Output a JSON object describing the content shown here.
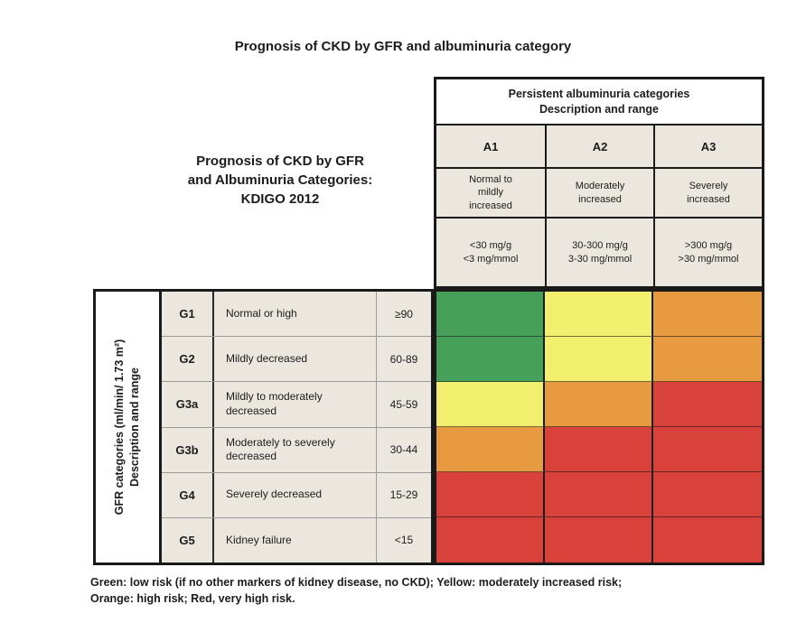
{
  "title": "Prognosis of CKD by GFR and albuminuria category",
  "left_caption": {
    "line1": "Prognosis of CKD by GFR",
    "line2": "and Albuminuria Categories:",
    "line3": "KDIGO 2012"
  },
  "albuminuria": {
    "header_line1": "Persistent albuminuria categories",
    "header_line2": "Description and range",
    "columns": [
      {
        "code": "A1",
        "description": "Normal to mildly increased",
        "range_line1": "<30 mg/g",
        "range_line2": "<3 mg/mmol"
      },
      {
        "code": "A2",
        "description": "Moderately increased",
        "range_line1": "30-300 mg/g",
        "range_line2": "3-30 mg/mmol"
      },
      {
        "code": "A3",
        "description": "Severely increased",
        "range_line1": ">300 mg/g",
        "range_line2": ">30 mg/mmol"
      }
    ]
  },
  "gfr": {
    "axis_line1": "GFR categories (ml/min/ 1.73 m²)",
    "axis_line2": "Description and range",
    "rows": [
      {
        "code": "G1",
        "description": "Normal or high",
        "range": "≥90"
      },
      {
        "code": "G2",
        "description": "Mildly decreased",
        "range": "60-89"
      },
      {
        "code": "G3a",
        "description": "Mildly to moderately decreased",
        "range": "45-59"
      },
      {
        "code": "G3b",
        "description": "Moderately to severely decreased",
        "range": "30-44"
      },
      {
        "code": "G4",
        "description": "Severely decreased",
        "range": "15-29"
      },
      {
        "code": "G5",
        "description": "Kidney failure",
        "range": "<15"
      }
    ]
  },
  "risk_matrix": {
    "rows": [
      [
        "green",
        "yellow",
        "orange"
      ],
      [
        "green",
        "yellow",
        "orange"
      ],
      [
        "yellow",
        "orange",
        "red"
      ],
      [
        "orange",
        "red",
        "red"
      ],
      [
        "red",
        "red",
        "red"
      ],
      [
        "red",
        "red",
        "red"
      ]
    ]
  },
  "colors": {
    "green": "#47a05a",
    "yellow": "#f2ee6e",
    "orange": "#e89a40",
    "red": "#d9423a",
    "cell_beige": "#ece7de",
    "border_black": "#1a1a1a"
  },
  "footnote": {
    "line1": "Green: low risk (if no other markers of kidney disease, no CKD); Yellow: moderately increased risk;",
    "line2": "Orange: high risk; Red, very high risk."
  },
  "chart_data": {
    "type": "heatmap",
    "title": "Prognosis of CKD by GFR and albuminuria category",
    "x_label": "Persistent albuminuria categories, Description and range",
    "y_label": "GFR categories (ml/min/ 1.73 m²), Description and range",
    "x_categories": [
      "A1: Normal to mildly increased (<30 mg/g, <3 mg/mmol)",
      "A2: Moderately increased (30-300 mg/g, 3-30 mg/mmol)",
      "A3: Severely increased (>300 mg/g, >30 mg/mmol)"
    ],
    "y_categories": [
      "G1: Normal or high (≥90)",
      "G2: Mildly decreased (60-89)",
      "G3a: Mildly to moderately decreased (45-59)",
      "G3b: Moderately to severely decreased (30-44)",
      "G4: Severely decreased (15-29)",
      "G5: Kidney failure (<15)"
    ],
    "values": [
      [
        "low risk",
        "moderately increased risk",
        "high risk"
      ],
      [
        "low risk",
        "moderately increased risk",
        "high risk"
      ],
      [
        "moderately increased risk",
        "high risk",
        "very high risk"
      ],
      [
        "high risk",
        "very high risk",
        "very high risk"
      ],
      [
        "very high risk",
        "very high risk",
        "very high risk"
      ],
      [
        "very high risk",
        "very high risk",
        "very high risk"
      ]
    ],
    "legend": {
      "green": "low risk",
      "yellow": "moderately increased risk",
      "orange": "high risk",
      "red": "very high risk"
    },
    "legend_position": "bottom-caption",
    "grid": "on"
  }
}
